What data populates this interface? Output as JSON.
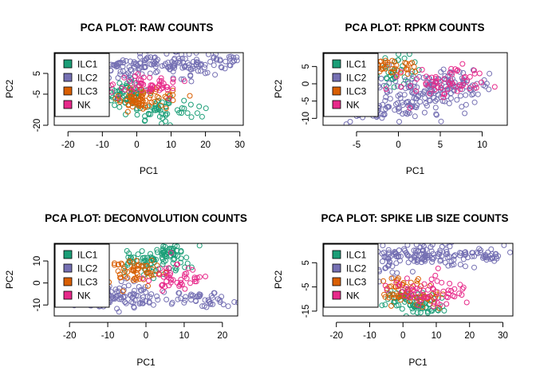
{
  "colors": {
    "ILC1": "#1b9e77",
    "ILC2": "#7570b3",
    "ILC3": "#d95f02",
    "NK": "#e7298a"
  },
  "chart_data": [
    {
      "type": "scatter",
      "title": "PCA PLOT: RAW COUNTS",
      "xlabel": "PC1",
      "ylabel": "PC2",
      "xlim": [
        -24,
        31
      ],
      "ylim": [
        -20,
        15
      ],
      "xticks": [
        -20,
        -10,
        0,
        10,
        20,
        30
      ],
      "yticks": [
        -20,
        -5,
        5
      ],
      "legend": {
        "position": "top-left",
        "entries": [
          "ILC1",
          "ILC2",
          "ILC3",
          "NK"
        ]
      },
      "series": [
        {
          "name": "ILC1",
          "clusters": [
            {
              "cx": -3,
              "cy": -5,
              "sx": 3,
              "sy": 3,
              "n": 60
            },
            {
              "cx": 7,
              "cy": -12,
              "sx": 5,
              "sy": 3,
              "n": 50
            },
            {
              "cx": 17,
              "cy": -15,
              "sx": 2,
              "sy": 2,
              "n": 8
            }
          ]
        },
        {
          "name": "ILC2",
          "clusters": [
            {
              "cx": 8,
              "cy": 9,
              "sx": 9,
              "sy": 2.5,
              "n": 130
            },
            {
              "cx": 25,
              "cy": 11,
              "sx": 3,
              "sy": 1.5,
              "n": 20
            },
            {
              "cx": -5,
              "cy": 6,
              "sx": 3,
              "sy": 3,
              "n": 30
            }
          ]
        },
        {
          "name": "ILC3",
          "clusters": [
            {
              "cx": 1,
              "cy": -7,
              "sx": 4,
              "sy": 2.5,
              "n": 60
            },
            {
              "cx": 9,
              "cy": -6,
              "sx": 3,
              "sy": 1.5,
              "n": 12
            }
          ]
        },
        {
          "name": "NK",
          "clusters": [
            {
              "cx": 2,
              "cy": 0,
              "sx": 4,
              "sy": 3,
              "n": 40
            },
            {
              "cx": 8,
              "cy": -2,
              "sx": 3,
              "sy": 2,
              "n": 12
            }
          ]
        }
      ]
    },
    {
      "type": "scatter",
      "title": "PCA PLOT: RPKM COUNTS",
      "xlabel": "PC1",
      "ylabel": "PC2",
      "xlim": [
        -9,
        13
      ],
      "ylim": [
        -12,
        9
      ],
      "xticks": [
        -5,
        0,
        5,
        10
      ],
      "yticks": [
        -10,
        -5,
        0,
        5
      ],
      "legend": {
        "position": "top-left",
        "entries": [
          "ILC1",
          "ILC2",
          "ILC3",
          "NK"
        ]
      },
      "series": [
        {
          "name": "ILC1",
          "clusters": [
            {
              "cx": -1,
              "cy": 3,
              "sx": 1.5,
              "sy": 2,
              "n": 30
            },
            {
              "cx": 0,
              "cy": 6,
              "sx": 1,
              "sy": 1.5,
              "n": 10
            }
          ]
        },
        {
          "name": "ILC2",
          "clusters": [
            {
              "cx": 2,
              "cy": -4,
              "sx": 3,
              "sy": 3,
              "n": 120
            },
            {
              "cx": 6,
              "cy": 0,
              "sx": 2.5,
              "sy": 2,
              "n": 80
            },
            {
              "cx": -4,
              "cy": -8,
              "sx": 1.5,
              "sy": 1.5,
              "n": 30
            }
          ]
        },
        {
          "name": "ILC3",
          "clusters": [
            {
              "cx": -1,
              "cy": 5,
              "sx": 1.5,
              "sy": 1.5,
              "n": 40
            }
          ]
        },
        {
          "name": "NK",
          "clusters": [
            {
              "cx": 5,
              "cy": 0,
              "sx": 3,
              "sy": 2.5,
              "n": 50
            },
            {
              "cx": 8,
              "cy": 2,
              "sx": 1.5,
              "sy": 1.5,
              "n": 12
            }
          ]
        }
      ]
    },
    {
      "type": "scatter",
      "title": "PCA PLOT: DECONVOLUTION COUNTS",
      "xlabel": "PC1",
      "ylabel": "PC2",
      "xlim": [
        -24,
        24
      ],
      "ylim": [
        -15,
        18
      ],
      "xticks": [
        -20,
        -10,
        0,
        10,
        20
      ],
      "yticks": [
        -10,
        0,
        10
      ],
      "legend": {
        "position": "top-left",
        "entries": [
          "ILC1",
          "ILC2",
          "ILC3",
          "NK"
        ]
      },
      "series": [
        {
          "name": "ILC1",
          "clusters": [
            {
              "cx": 2,
              "cy": 10,
              "sx": 5,
              "sy": 3,
              "n": 80
            },
            {
              "cx": 7,
              "cy": 14,
              "sx": 2,
              "sy": 2,
              "n": 30
            }
          ]
        },
        {
          "name": "ILC2",
          "clusters": [
            {
              "cx": -8,
              "cy": -6,
              "sx": 7,
              "sy": 3,
              "n": 120
            },
            {
              "cx": 16,
              "cy": -8,
              "sx": 4,
              "sy": 2,
              "n": 40
            }
          ]
        },
        {
          "name": "ILC3",
          "clusters": [
            {
              "cx": -2,
              "cy": 5,
              "sx": 4,
              "sy": 3,
              "n": 60
            }
          ]
        },
        {
          "name": "NK",
          "clusters": [
            {
              "cx": 7,
              "cy": 1,
              "sx": 3,
              "sy": 4,
              "n": 40
            },
            {
              "cx": 12,
              "cy": 3,
              "sx": 2,
              "sy": 2,
              "n": 8
            }
          ]
        }
      ]
    },
    {
      "type": "scatter",
      "title": "PCA PLOT: SPIKE LIB SIZE COUNTS",
      "xlabel": "PC1",
      "ylabel": "PC2",
      "xlim": [
        -24,
        33
      ],
      "ylim": [
        -17,
        13
      ],
      "xticks": [
        -20,
        -10,
        0,
        10,
        20,
        30
      ],
      "yticks": [
        -15,
        -5,
        5
      ],
      "legend": {
        "position": "top-left",
        "entries": [
          "ILC1",
          "ILC2",
          "ILC3",
          "NK"
        ]
      },
      "series": [
        {
          "name": "ILC1",
          "clusters": [
            {
              "cx": 2,
              "cy": -11,
              "sx": 4,
              "sy": 2.5,
              "n": 70
            },
            {
              "cx": 7,
              "cy": -14,
              "sx": 2,
              "sy": 1.5,
              "n": 15
            }
          ]
        },
        {
          "name": "ILC2",
          "clusters": [
            {
              "cx": 8,
              "cy": 8,
              "sx": 9,
              "sy": 2.5,
              "n": 140
            },
            {
              "cx": 25,
              "cy": 8,
              "sx": 3,
              "sy": 1.5,
              "n": 20
            },
            {
              "cx": -5,
              "cy": 4,
              "sx": 3,
              "sy": 3,
              "n": 30
            }
          ]
        },
        {
          "name": "ILC3",
          "clusters": [
            {
              "cx": 0,
              "cy": -7,
              "sx": 4,
              "sy": 3,
              "n": 60
            },
            {
              "cx": 9,
              "cy": -10,
              "sx": 2,
              "sy": 1.5,
              "n": 10
            }
          ]
        },
        {
          "name": "NK",
          "clusters": [
            {
              "cx": 6,
              "cy": -6,
              "sx": 5,
              "sy": 3,
              "n": 50
            },
            {
              "cx": 15,
              "cy": -7,
              "sx": 3,
              "sy": 2,
              "n": 12
            }
          ]
        }
      ]
    }
  ]
}
